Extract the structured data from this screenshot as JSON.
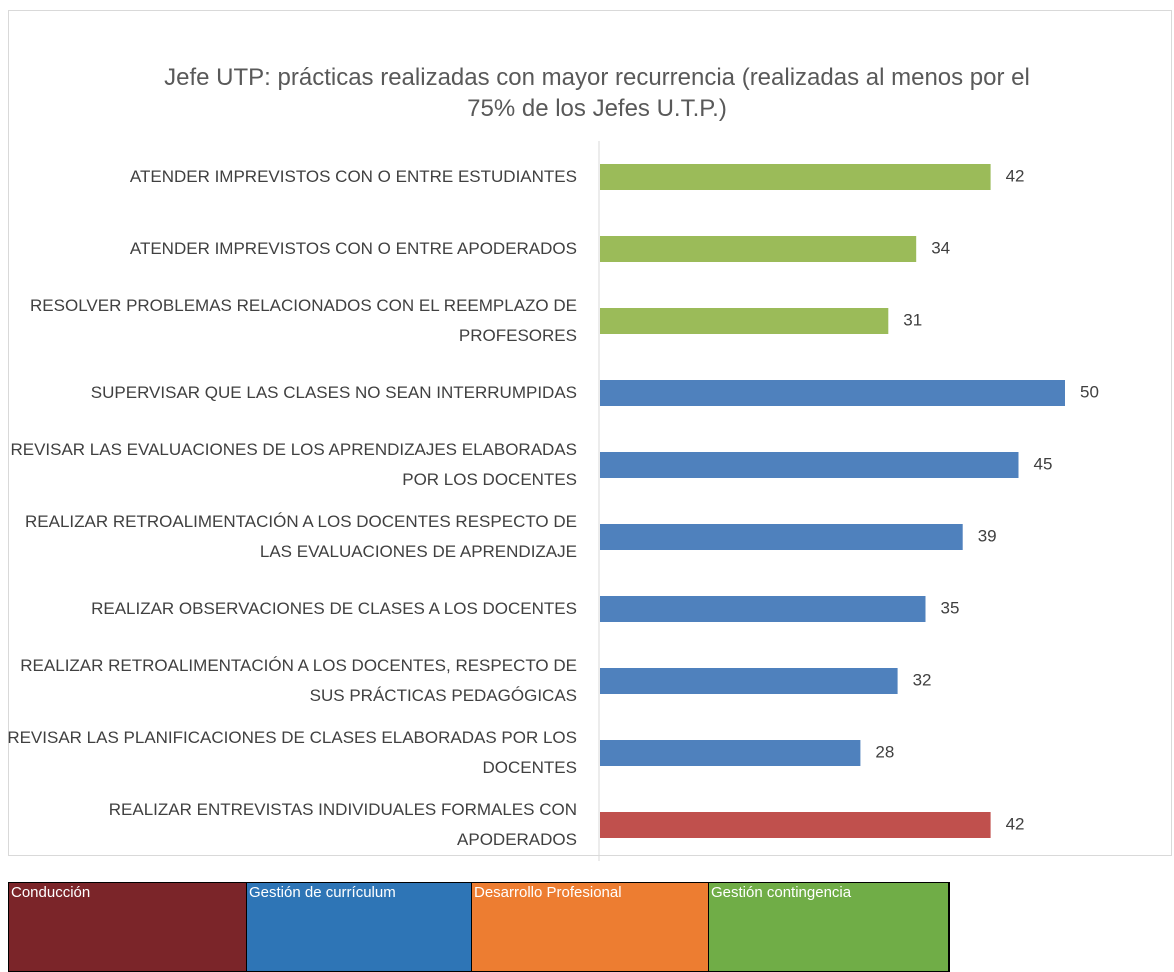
{
  "chart_data": {
    "type": "hbar",
    "title": "Jefe UTP: prácticas realizadas con mayor recurrencia (realizadas al menos por el 75% de los Jefes U.T.P.)",
    "categories": [
      "ATENDER IMPREVISTOS CON O ENTRE ESTUDIANTES",
      "ATENDER IMPREVISTOS CON O ENTRE APODERADOS",
      "RESOLVER PROBLEMAS RELACIONADOS CON EL REEMPLAZO DE PROFESORES",
      "SUPERVISAR QUE LAS CLASES NO SEAN INTERRUMPIDAS",
      "REVISAR LAS EVALUACIONES DE LOS APRENDIZAJES ELABORADAS POR LOS DOCENTES",
      "REALIZAR RETROALIMENTACIÓN A LOS DOCENTES RESPECTO DE LAS EVALUACIONES DE APRENDIZAJE",
      "REALIZAR OBSERVACIONES DE CLASES A LOS DOCENTES",
      "REALIZAR RETROALIMENTACIÓN A LOS DOCENTES, RESPECTO DE SUS PRÁCTICAS PEDAGÓGICAS",
      "REVISAR LAS PLANIFICACIONES DE CLASES ELABORADAS POR LOS DOCENTES",
      "REALIZAR ENTREVISTAS INDIVIDUALES FORMALES CON APODERADOS"
    ],
    "values": [
      42,
      34,
      31,
      50,
      45,
      39,
      35,
      32,
      28,
      42
    ],
    "colors": [
      "#9bbb59",
      "#9bbb59",
      "#9bbb59",
      "#4f81bd",
      "#4f81bd",
      "#4f81bd",
      "#4f81bd",
      "#4f81bd",
      "#4f81bd",
      "#c0504d"
    ]
  },
  "legend_table": {
    "cells": [
      {
        "label": "Conducción",
        "color": "#7b2529"
      },
      {
        "label": "Gestión de currículum",
        "color": "#2e75b6"
      },
      {
        "label": "Desarrollo Profesional",
        "color": "#ed7d31"
      },
      {
        "label": "Gestión contingencia",
        "color": "#70ad47"
      }
    ]
  }
}
